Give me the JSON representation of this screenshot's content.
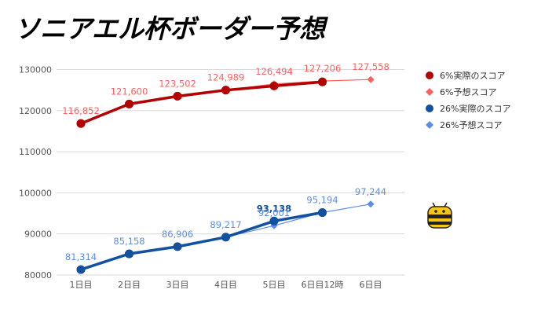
{
  "title": "ソニアエル杯ボーダー予想",
  "chart_data": {
    "type": "line",
    "categories": [
      "1日目",
      "2日目",
      "3日目",
      "4日目",
      "5日目",
      "6日目12時",
      "6日目"
    ],
    "ylim": [
      80000,
      132000
    ],
    "yticks": [
      80000,
      90000,
      100000,
      110000,
      120000,
      130000
    ],
    "series": [
      {
        "name": "6%実際のスコア",
        "color": "#b30000",
        "style": "actual",
        "values": [
          116852,
          121600,
          123502,
          124989,
          126000,
          127000,
          null
        ]
      },
      {
        "name": "6%予想スコア",
        "color": "#ff5f5f",
        "style": "predicted",
        "values": [
          116852,
          121600,
          123502,
          124989,
          126494,
          127206,
          127558
        ]
      },
      {
        "name": "26%実際のスコア",
        "color": "#1250a0",
        "style": "actual",
        "values": [
          81314,
          85158,
          86906,
          89217,
          93138,
          95194,
          null
        ]
      },
      {
        "name": "26%予想スコア",
        "color": "#5b8fe5",
        "style": "predicted",
        "values": [
          81314,
          85158,
          86906,
          89217,
          92001,
          95194,
          97244
        ]
      }
    ],
    "data_labels": [
      {
        "series": 1,
        "index": 0,
        "text": "116,852"
      },
      {
        "series": 1,
        "index": 1,
        "text": "121,600"
      },
      {
        "series": 1,
        "index": 2,
        "text": "123,502"
      },
      {
        "series": 1,
        "index": 3,
        "text": "124,989"
      },
      {
        "series": 1,
        "index": 4,
        "text": "126,494"
      },
      {
        "series": 1,
        "index": 5,
        "text": "127,206"
      },
      {
        "series": 1,
        "index": 6,
        "text": "127,558"
      },
      {
        "series": 3,
        "index": 0,
        "text": "81,314"
      },
      {
        "series": 3,
        "index": 1,
        "text": "85,158"
      },
      {
        "series": 3,
        "index": 2,
        "text": "86,906"
      },
      {
        "series": 3,
        "index": 3,
        "text": "89,217"
      },
      {
        "series": 2,
        "index": 4,
        "text": "93,138"
      },
      {
        "series": 3,
        "index": 4,
        "text": "92,001"
      },
      {
        "series": 3,
        "index": 5,
        "text": "95,194"
      },
      {
        "series": 3,
        "index": 6,
        "text": "97,244"
      }
    ],
    "grid": true,
    "legend": "right"
  },
  "icons": {
    "mascot": "bee-icon"
  }
}
